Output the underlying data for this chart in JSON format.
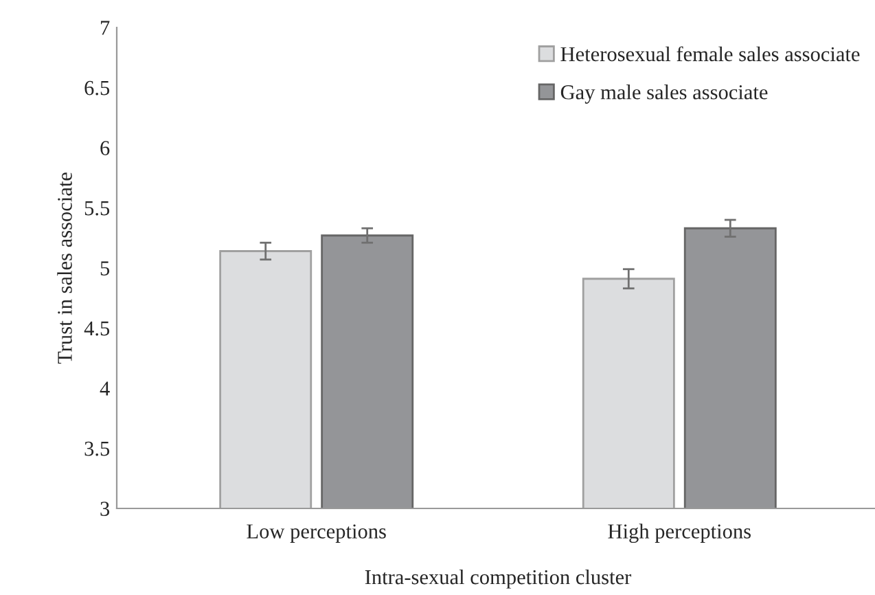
{
  "chart_data": {
    "type": "bar",
    "categories": [
      "Low perceptions",
      "High perceptions"
    ],
    "series": [
      {
        "name": "Heterosexual female sales associate",
        "color": "#dcdddf",
        "values": [
          5.14,
          4.91
        ],
        "errors": [
          0.07,
          0.08
        ]
      },
      {
        "name": "Gay male sales associate",
        "color": "#949598",
        "values": [
          5.27,
          5.33
        ],
        "errors": [
          0.06,
          0.07
        ]
      }
    ],
    "xlabel": "Intra-sexual competition cluster",
    "ylabel": "Trust in sales associate",
    "ylim": [
      3,
      7
    ],
    "yticks": [
      3,
      3.5,
      4,
      4.5,
      5,
      5.5,
      6,
      6.5,
      7
    ],
    "grid": false,
    "legend": "top right"
  }
}
